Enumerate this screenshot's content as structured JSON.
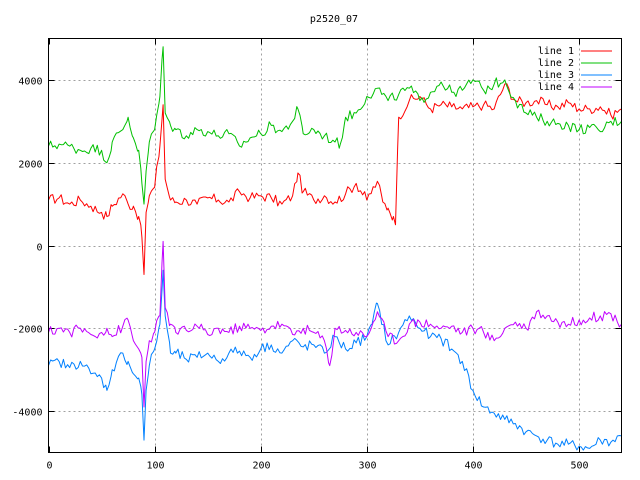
{
  "chart_data": {
    "type": "line",
    "title": "p2520_07",
    "xlabel": "",
    "ylabel": "",
    "xlim": [
      0,
      540
    ],
    "ylim": [
      -5000,
      5000
    ],
    "xticks": [
      0,
      100,
      200,
      300,
      400,
      500
    ],
    "yticks": [
      -4000,
      -2000,
      0,
      2000,
      4000
    ],
    "grid": true,
    "legend_position": "top-right",
    "series": [
      {
        "name": "line 1",
        "color": "#ff0000",
        "x": [
          0,
          10,
          20,
          30,
          40,
          50,
          55,
          60,
          70,
          75,
          80,
          85,
          88,
          90,
          92,
          95,
          100,
          105,
          108,
          110,
          115,
          120,
          130,
          140,
          150,
          160,
          170,
          180,
          190,
          200,
          210,
          220,
          230,
          235,
          240,
          250,
          260,
          270,
          280,
          290,
          300,
          310,
          315,
          320,
          325,
          327,
          330,
          340,
          350,
          360,
          370,
          380,
          390,
          400,
          410,
          420,
          430,
          440,
          450,
          460,
          470,
          480,
          490,
          500,
          510,
          520,
          530,
          540
        ],
        "y": [
          1100,
          1150,
          1000,
          1100,
          950,
          800,
          700,
          950,
          1250,
          1000,
          950,
          700,
          200,
          -700,
          800,
          1200,
          1400,
          2400,
          3400,
          1600,
          1100,
          1050,
          1100,
          1000,
          1150,
          1100,
          1050,
          1300,
          1150,
          1200,
          1150,
          1000,
          1200,
          1750,
          1300,
          1100,
          1200,
          1050,
          1250,
          1500,
          1100,
          1550,
          1050,
          900,
          700,
          500,
          3100,
          3500,
          3600,
          3300,
          3400,
          3350,
          3300,
          3350,
          3400,
          3300,
          3900,
          3500,
          3450,
          3500,
          3400,
          3350,
          3450,
          3300,
          3300,
          3350,
          3150,
          3300
        ]
      },
      {
        "name": "line 2",
        "color": "#00c000",
        "x": [
          0,
          10,
          20,
          30,
          40,
          50,
          55,
          60,
          70,
          75,
          80,
          85,
          88,
          90,
          92,
          95,
          100,
          105,
          108,
          110,
          115,
          120,
          130,
          140,
          150,
          160,
          170,
          180,
          190,
          200,
          210,
          220,
          230,
          235,
          240,
          250,
          260,
          270,
          275,
          280,
          290,
          300,
          310,
          320,
          330,
          340,
          350,
          360,
          370,
          380,
          390,
          400,
          410,
          420,
          430,
          440,
          450,
          460,
          470,
          480,
          490,
          500,
          510,
          520,
          530,
          540
        ],
        "y": [
          2400,
          2450,
          2400,
          2300,
          2350,
          2300,
          2000,
          2500,
          2800,
          3100,
          2600,
          2300,
          1500,
          1000,
          1800,
          2500,
          2800,
          3600,
          4800,
          3200,
          2900,
          2800,
          2650,
          2800,
          2750,
          2650,
          2700,
          2400,
          2600,
          2700,
          2900,
          2750,
          3000,
          3300,
          2700,
          2800,
          2650,
          2500,
          2450,
          3100,
          3200,
          3600,
          3800,
          3500,
          3650,
          3800,
          3500,
          3700,
          3950,
          3700,
          3750,
          4000,
          3750,
          3900,
          4000,
          3500,
          3200,
          3100,
          3000,
          2950,
          2900,
          2800,
          2850,
          2750,
          3000,
          3000
        ]
      },
      {
        "name": "line 3",
        "color": "#0080ff",
        "x": [
          0,
          10,
          20,
          30,
          40,
          50,
          55,
          60,
          70,
          75,
          80,
          85,
          88,
          90,
          92,
          95,
          100,
          105,
          108,
          110,
          115,
          120,
          130,
          140,
          150,
          160,
          170,
          180,
          190,
          200,
          210,
          220,
          230,
          240,
          250,
          260,
          270,
          280,
          290,
          300,
          305,
          310,
          320,
          330,
          340,
          350,
          360,
          370,
          380,
          390,
          400,
          410,
          420,
          430,
          440,
          450,
          460,
          470,
          480,
          490,
          500,
          510,
          520,
          530,
          540
        ],
        "y": [
          -2900,
          -2800,
          -2950,
          -2800,
          -3100,
          -3200,
          -3500,
          -3000,
          -2600,
          -2800,
          -3100,
          -3200,
          -3600,
          -4700,
          -3500,
          -2900,
          -2500,
          -1900,
          -600,
          -1700,
          -2600,
          -2600,
          -2750,
          -2700,
          -2600,
          -2800,
          -2600,
          -2550,
          -2700,
          -2500,
          -2400,
          -2600,
          -2300,
          -2450,
          -2400,
          -2600,
          -2200,
          -2500,
          -2350,
          -2200,
          -1900,
          -1400,
          -2400,
          -2100,
          -1700,
          -2000,
          -2200,
          -2250,
          -2500,
          -2800,
          -3500,
          -3900,
          -4050,
          -4200,
          -4300,
          -4500,
          -4600,
          -4700,
          -4800,
          -4800,
          -4850,
          -4900,
          -4700,
          -4750,
          -4600
        ]
      },
      {
        "name": "line 4",
        "color": "#c000ff",
        "x": [
          0,
          10,
          20,
          30,
          40,
          50,
          55,
          60,
          70,
          75,
          80,
          85,
          88,
          90,
          92,
          95,
          100,
          105,
          108,
          110,
          115,
          120,
          130,
          140,
          150,
          160,
          170,
          180,
          190,
          200,
          210,
          220,
          230,
          240,
          250,
          260,
          265,
          270,
          280,
          290,
          300,
          310,
          320,
          330,
          340,
          350,
          360,
          370,
          380,
          390,
          400,
          410,
          420,
          430,
          440,
          450,
          460,
          470,
          480,
          490,
          500,
          510,
          520,
          530,
          540
        ],
        "y": [
          -2100,
          -2000,
          -2100,
          -2000,
          -2150,
          -2100,
          -2000,
          -2200,
          -1950,
          -1800,
          -2300,
          -2500,
          -2700,
          -3900,
          -2800,
          -2300,
          -2100,
          -1700,
          100,
          -1500,
          -1900,
          -2100,
          -2050,
          -1950,
          -2150,
          -2000,
          -2100,
          -1950,
          -2000,
          -2050,
          -1950,
          -1900,
          -2150,
          -2000,
          -2100,
          -2300,
          -2900,
          -2000,
          -2050,
          -2100,
          -2200,
          -1600,
          -2200,
          -2300,
          -1900,
          -1850,
          -1900,
          -2000,
          -1950,
          -2100,
          -2000,
          -2100,
          -2300,
          -2000,
          -1850,
          -2000,
          -1600,
          -1700,
          -1850,
          -1900,
          -1800,
          -1750,
          -1700,
          -1650,
          -1900
        ]
      }
    ]
  }
}
